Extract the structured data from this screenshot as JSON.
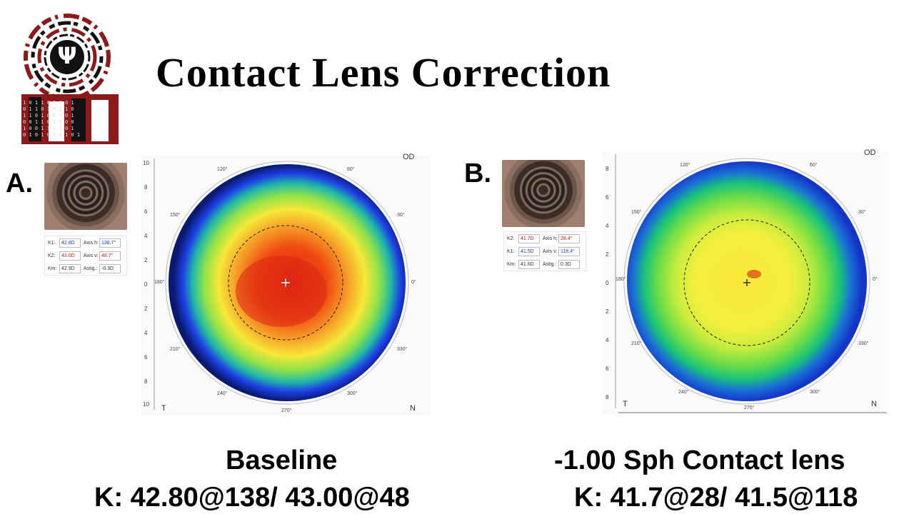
{
  "title": "Contact Lens Correction",
  "logo": {
    "glyph": "Ψ",
    "binary_rows": [
      "1 0 1 1 0 1 0 0 1",
      "0 1 1 0 1 0 1 1 0",
      "1 1 0 1 0 0 1 0 1",
      "0 0 1 1 0 1 1 0 0",
      "1 0 0 1 1 0 1 0 1",
      "0 1 0 1 0 1 0 1 0 1"
    ]
  },
  "panel_a": {
    "letter": "A.",
    "k_table": {
      "rows": [
        {
          "l1": "K1:",
          "v1": "42.8D",
          "l2": "Axis h:",
          "v2": "138.7°"
        },
        {
          "l1": "K2:",
          "v1": "43.0D",
          "l2": "Axis v:",
          "v2": "48.7°"
        },
        {
          "l1": "Km:",
          "v1": "42.9D",
          "l2": "Astig.:",
          "v2": "-0.3D"
        }
      ]
    },
    "map": {
      "eye": "OD",
      "left_label": "T",
      "right_label": "N",
      "y_ticks": [
        "10",
        "8",
        "6",
        "4",
        "2",
        "0",
        "2",
        "4",
        "6",
        "8",
        "10"
      ],
      "angles": [
        "120°",
        "60°",
        "150°",
        "30°",
        "180°",
        "0°",
        "210°",
        "330°",
        "240°",
        "300°",
        "270°"
      ]
    },
    "caption_line1": "Baseline",
    "caption_line2": "K: 42.80@138/ 43.00@48"
  },
  "panel_b": {
    "letter": "B.",
    "k_table": {
      "rows": [
        {
          "l1": "K2:",
          "v1": "41.7D",
          "l2": "Axis h:",
          "v2": "28.4°"
        },
        {
          "l1": "K1:",
          "v1": "41.5D",
          "l2": "Axis v:",
          "v2": "118.4°"
        },
        {
          "l1": "Km:",
          "v1": "41.6D",
          "l2": "Astig.:",
          "v2": "0.3D"
        }
      ]
    },
    "map": {
      "eye": "OD",
      "left_label": "T",
      "right_label": "N",
      "y_ticks": [
        "8",
        "6",
        "4",
        "2",
        "0",
        "2",
        "4",
        "6",
        "8"
      ],
      "angles": [
        "120°",
        "60°",
        "150°",
        "30°",
        "180°",
        "0°",
        "210°",
        "330°",
        "240°",
        "300°",
        "270°"
      ]
    },
    "caption_line1": "-1.00 Sph Contact lens",
    "caption_line2": "K: 41.7@28/ 41.5@118"
  },
  "colors": {
    "crimson": "#8b1a1a",
    "blue": "#1a3fd0",
    "red": "#d01a1a"
  }
}
